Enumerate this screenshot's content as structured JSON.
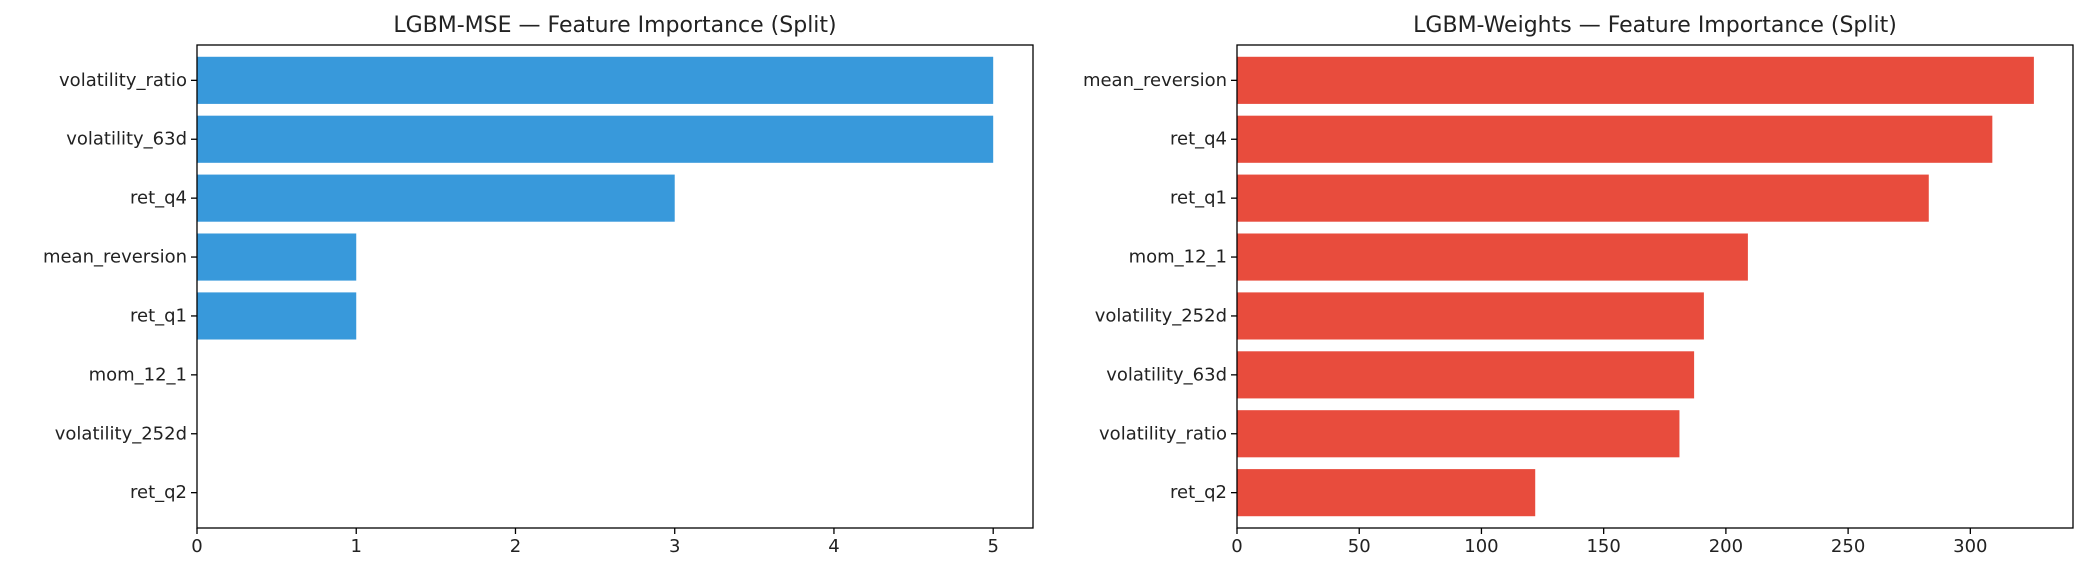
{
  "chart_data": [
    {
      "type": "bar",
      "orientation": "horizontal",
      "title": "LGBM-MSE — Feature Importance (Split)",
      "categories": [
        "volatility_ratio",
        "volatility_63d",
        "ret_q4",
        "mean_reversion",
        "ret_q1",
        "mom_12_1",
        "volatility_252d",
        "ret_q2"
      ],
      "values": [
        5,
        5,
        3,
        1,
        1,
        0,
        0,
        0
      ],
      "xlim": [
        0,
        5.25
      ],
      "xticks": [
        0,
        1,
        2,
        3,
        4,
        5
      ],
      "color": "#3899db",
      "grid": false,
      "xlabel": "",
      "ylabel": ""
    },
    {
      "type": "bar",
      "orientation": "horizontal",
      "title": "LGBM-Weights — Feature Importance (Split)",
      "categories": [
        "mean_reversion",
        "ret_q4",
        "ret_q1",
        "mom_12_1",
        "volatility_252d",
        "volatility_63d",
        "volatility_ratio",
        "ret_q2"
      ],
      "values": [
        326,
        309,
        283,
        209,
        191,
        187,
        181,
        122
      ],
      "xlim": [
        0,
        342
      ],
      "xticks": [
        0,
        50,
        100,
        150,
        200,
        250,
        300
      ],
      "color": "#e84c3d",
      "grid": false,
      "xlabel": "",
      "ylabel": ""
    }
  ]
}
